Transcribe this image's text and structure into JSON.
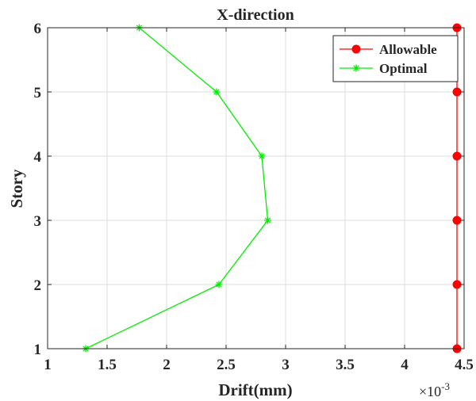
{
  "chart_data": {
    "type": "line",
    "title": "X-direction",
    "xlabel": "Drift(mm)",
    "ylabel": "Story",
    "x_exponent_label": {
      "base": "×10",
      "exponent": "-3"
    },
    "xlim": [
      1,
      4.5
    ],
    "ylim": [
      1,
      6
    ],
    "x_ticks": [
      1,
      1.5,
      2,
      2.5,
      3,
      3.5,
      4,
      4.5
    ],
    "x_tick_labels": [
      "1",
      "1.5",
      "2",
      "2.5",
      "3",
      "3.5",
      "4",
      "4.5"
    ],
    "y_ticks": [
      1,
      2,
      3,
      4,
      5,
      6
    ],
    "y_tick_labels": [
      "1",
      "2",
      "3",
      "4",
      "5",
      "6"
    ],
    "grid": true,
    "legend": {
      "placement": "top-right"
    },
    "series": [
      {
        "name": "Allowable",
        "color": "#ff0000",
        "marker": "circle",
        "points": [
          {
            "x": 4.44,
            "y": 1
          },
          {
            "x": 4.44,
            "y": 2
          },
          {
            "x": 4.44,
            "y": 3
          },
          {
            "x": 4.44,
            "y": 4
          },
          {
            "x": 4.44,
            "y": 5
          },
          {
            "x": 4.44,
            "y": 6
          }
        ]
      },
      {
        "name": "Optimal",
        "color": "#00ee00",
        "marker": "asterisk",
        "points": [
          {
            "x": 1.32,
            "y": 1
          },
          {
            "x": 2.44,
            "y": 2
          },
          {
            "x": 2.85,
            "y": 3
          },
          {
            "x": 2.8,
            "y": 4
          },
          {
            "x": 2.42,
            "y": 5
          },
          {
            "x": 1.77,
            "y": 6
          }
        ]
      }
    ]
  }
}
